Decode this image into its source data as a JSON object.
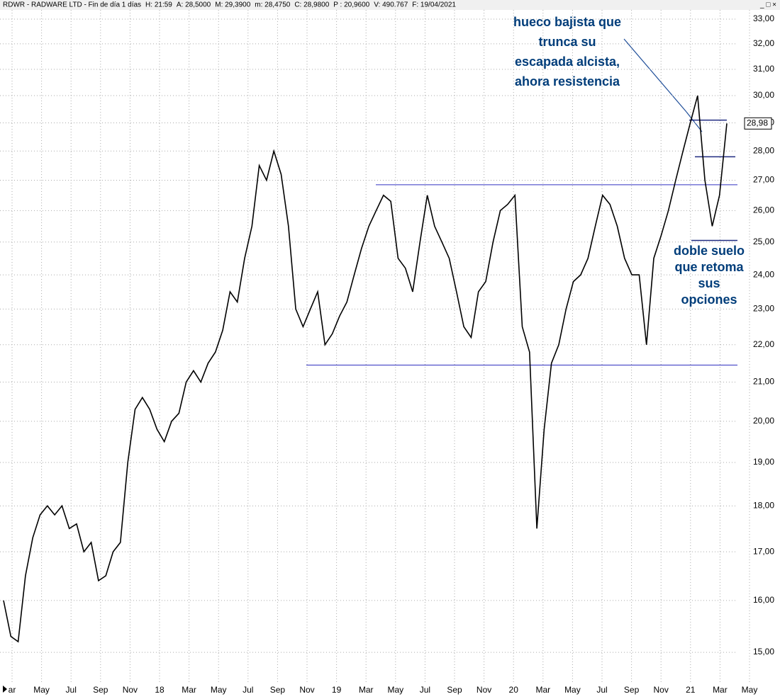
{
  "chart_data": {
    "type": "line",
    "log_scale": true,
    "grid": true,
    "color": "#000000",
    "header": {
      "symbol": "RDWR - RADWARE LTD - Fin de día 1 días",
      "time": "H: 21:59",
      "open": "A: 28,5000",
      "high": "M: 29,3900",
      "low": "m: 28,4750",
      "close": "C: 28,9800",
      "prev": "P : 20,9600",
      "volume": "V: 490.767",
      "date": "F: 19/04/2021"
    },
    "x_labels": [
      "ar",
      "May",
      "Jul",
      "Sep",
      "Nov",
      "18",
      "Mar",
      "May",
      "Jul",
      "Sep",
      "Nov",
      "19",
      "Mar",
      "May",
      "Jul",
      "Sep",
      "Nov",
      "20",
      "Mar",
      "May",
      "Jul",
      "Sep",
      "Nov",
      "21",
      "Mar",
      "May"
    ],
    "values": [
      16.0,
      15.3,
      15.2,
      16.5,
      17.3,
      17.8,
      18.0,
      17.8,
      18.0,
      17.5,
      17.6,
      17.0,
      17.2,
      16.4,
      16.5,
      17.0,
      17.2,
      19.0,
      20.3,
      20.6,
      20.3,
      19.8,
      19.5,
      20.0,
      20.2,
      21.0,
      21.3,
      21.0,
      21.5,
      21.8,
      22.4,
      23.5,
      23.2,
      24.5,
      25.5,
      27.5,
      27.0,
      28.0,
      27.2,
      25.5,
      23.0,
      22.5,
      23.0,
      23.5,
      22.0,
      22.3,
      22.8,
      23.2,
      24.0,
      24.8,
      25.5,
      26.0,
      26.5,
      26.3,
      24.5,
      24.2,
      23.5,
      25.0,
      26.5,
      25.5,
      25.0,
      24.5,
      23.5,
      22.5,
      22.2,
      23.5,
      23.8,
      25.0,
      26.0,
      26.2,
      26.5,
      22.5,
      21.8,
      17.5,
      19.8,
      21.5,
      22.0,
      23.0,
      23.8,
      24.0,
      24.5,
      25.5,
      26.5,
      26.2,
      25.5,
      24.5,
      24.0,
      24.0,
      22.0,
      24.5,
      25.2,
      26.0,
      27.0,
      28.0,
      29.0,
      30.0,
      27.0,
      25.5,
      26.5,
      28.98
    ],
    "last_price": {
      "value": 28.98,
      "label": "28,98"
    },
    "ylim": [
      14.43,
      33.38
    ],
    "yticks": [
      {
        "value": 15,
        "label": "15,00"
      },
      {
        "value": 16,
        "label": "16,00"
      },
      {
        "value": 17,
        "label": "17,00"
      },
      {
        "value": 18,
        "label": "18,00"
      },
      {
        "value": 19,
        "label": "19,00"
      },
      {
        "value": 20,
        "label": "20,00"
      },
      {
        "value": 21,
        "label": "21,00"
      },
      {
        "value": 22,
        "label": "22,00"
      },
      {
        "value": 23,
        "label": "23,00"
      },
      {
        "value": 24,
        "label": "24,00"
      },
      {
        "value": 25,
        "label": "25,00"
      },
      {
        "value": 26,
        "label": "26,00"
      },
      {
        "value": 27,
        "label": "27,00"
      },
      {
        "value": 28,
        "label": "28,00"
      },
      {
        "value": 29,
        "label": "29,00"
      },
      {
        "value": 30,
        "label": "30,00"
      },
      {
        "value": 31,
        "label": "31,00"
      },
      {
        "value": 32,
        "label": "32,00"
      },
      {
        "value": 33,
        "label": "33,00"
      }
    ],
    "levels": [
      26.85,
      21.45,
      29.1,
      27.8,
      25.05
    ],
    "annotations": [
      [
        "hueco bajista que",
        "trunca su",
        "escapada alcista,",
        "ahora resistencia"
      ],
      [
        "doble suelo",
        "que retoma",
        "sus",
        "opciones"
      ]
    ]
  }
}
